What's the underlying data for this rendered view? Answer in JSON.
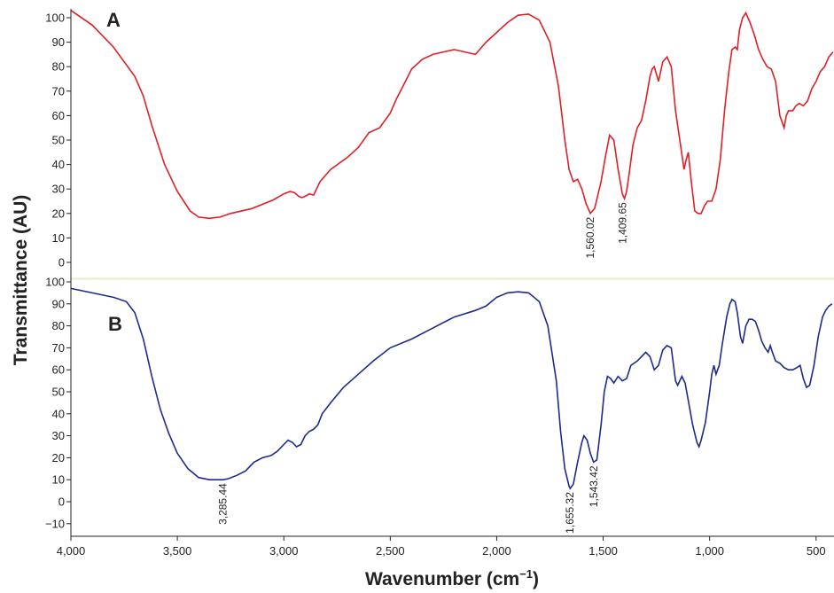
{
  "chart_data": {
    "type": "line",
    "ylabel": "Transmittance (AU)",
    "xlabel_main": "Wavenumber (cm",
    "xlabel_sup": "−1",
    "xlabel_close": ")",
    "xlim": [
      4000,
      420
    ],
    "x_ticks": [
      4000,
      3500,
      3000,
      2500,
      2000,
      1500,
      1000,
      500
    ],
    "x_tick_labels": [
      "4,000",
      "3,500",
      "3,000",
      "2,500",
      "2,000",
      "1,500",
      "1,000",
      "500"
    ],
    "divider_color": "#e6ecc8",
    "panels": [
      {
        "label": "A",
        "color": "#e01f26",
        "ylim": [
          -5,
          104
        ],
        "y_ticks": [
          0,
          10,
          20,
          30,
          40,
          50,
          60,
          70,
          80,
          90,
          100
        ],
        "y_tick_labels": [
          "0",
          "10",
          "20",
          "30",
          "40",
          "50",
          "60",
          "70",
          "80",
          "90",
          "100"
        ],
        "points": [
          [
            4000,
            103
          ],
          [
            3900,
            97
          ],
          [
            3800,
            88
          ],
          [
            3700,
            76
          ],
          [
            3660,
            68
          ],
          [
            3620,
            56
          ],
          [
            3560,
            40
          ],
          [
            3500,
            29
          ],
          [
            3440,
            21
          ],
          [
            3400,
            18.5
          ],
          [
            3350,
            18
          ],
          [
            3300,
            18.5
          ],
          [
            3250,
            20
          ],
          [
            3150,
            22
          ],
          [
            3050,
            25.5
          ],
          [
            3000,
            28
          ],
          [
            2970,
            29
          ],
          [
            2950,
            28.5
          ],
          [
            2930,
            27
          ],
          [
            2915,
            26.5
          ],
          [
            2900,
            27
          ],
          [
            2880,
            28
          ],
          [
            2860,
            27.5
          ],
          [
            2830,
            33
          ],
          [
            2780,
            38
          ],
          [
            2700,
            43
          ],
          [
            2650,
            47
          ],
          [
            2600,
            53
          ],
          [
            2550,
            55
          ],
          [
            2500,
            61
          ],
          [
            2470,
            67
          ],
          [
            2440,
            72
          ],
          [
            2400,
            79
          ],
          [
            2350,
            83
          ],
          [
            2300,
            85
          ],
          [
            2250,
            86
          ],
          [
            2200,
            87
          ],
          [
            2150,
            86
          ],
          [
            2100,
            85
          ],
          [
            2050,
            90
          ],
          [
            2000,
            94
          ],
          [
            1950,
            98
          ],
          [
            1900,
            101
          ],
          [
            1850,
            101.5
          ],
          [
            1800,
            99
          ],
          [
            1750,
            90
          ],
          [
            1710,
            72
          ],
          [
            1680,
            50
          ],
          [
            1660,
            38
          ],
          [
            1640,
            33
          ],
          [
            1620,
            34
          ],
          [
            1600,
            30
          ],
          [
            1580,
            24
          ],
          [
            1560,
            20
          ],
          [
            1540,
            22
          ],
          [
            1510,
            33
          ],
          [
            1490,
            43
          ],
          [
            1470,
            52
          ],
          [
            1450,
            50
          ],
          [
            1430,
            38
          ],
          [
            1410,
            28
          ],
          [
            1400,
            26
          ],
          [
            1390,
            29
          ],
          [
            1380,
            35
          ],
          [
            1360,
            48
          ],
          [
            1340,
            55
          ],
          [
            1320,
            58
          ],
          [
            1300,
            66
          ],
          [
            1280,
            76
          ],
          [
            1270,
            79
          ],
          [
            1260,
            80
          ],
          [
            1240,
            74
          ],
          [
            1220,
            82
          ],
          [
            1200,
            84
          ],
          [
            1180,
            80
          ],
          [
            1160,
            62
          ],
          [
            1140,
            50
          ],
          [
            1120,
            38
          ],
          [
            1110,
            42
          ],
          [
            1100,
            45
          ],
          [
            1085,
            32
          ],
          [
            1070,
            21
          ],
          [
            1055,
            20
          ],
          [
            1040,
            20
          ],
          [
            1025,
            23
          ],
          [
            1010,
            25
          ],
          [
            990,
            25
          ],
          [
            970,
            30
          ],
          [
            950,
            42
          ],
          [
            930,
            62
          ],
          [
            910,
            78
          ],
          [
            895,
            87
          ],
          [
            880,
            88
          ],
          [
            870,
            87
          ],
          [
            860,
            95
          ],
          [
            845,
            100
          ],
          [
            830,
            102
          ],
          [
            810,
            98
          ],
          [
            790,
            93
          ],
          [
            770,
            87
          ],
          [
            750,
            83
          ],
          [
            730,
            80
          ],
          [
            710,
            79
          ],
          [
            690,
            74
          ],
          [
            670,
            60
          ],
          [
            650,
            55
          ],
          [
            640,
            60
          ],
          [
            630,
            62
          ],
          [
            610,
            62
          ],
          [
            595,
            64
          ],
          [
            580,
            65
          ],
          [
            560,
            64
          ],
          [
            540,
            66
          ],
          [
            520,
            71
          ],
          [
            500,
            74
          ],
          [
            480,
            78
          ],
          [
            460,
            80
          ],
          [
            440,
            84
          ],
          [
            420,
            86
          ]
        ]
      },
      {
        "label": "B",
        "color": "#1d2b8c",
        "ylim": [
          -14,
          103
        ],
        "y_ticks": [
          -10,
          0,
          10,
          20,
          30,
          40,
          50,
          60,
          70,
          80,
          90,
          100
        ],
        "y_tick_labels": [
          "−10",
          "0",
          "10",
          "20",
          "30",
          "40",
          "50",
          "60",
          "70",
          "80",
          "90",
          "100"
        ],
        "points": [
          [
            4000,
            97
          ],
          [
            3900,
            95
          ],
          [
            3800,
            93
          ],
          [
            3740,
            91
          ],
          [
            3700,
            86
          ],
          [
            3660,
            74
          ],
          [
            3620,
            57
          ],
          [
            3580,
            42
          ],
          [
            3540,
            31
          ],
          [
            3500,
            22
          ],
          [
            3450,
            15
          ],
          [
            3400,
            11
          ],
          [
            3350,
            10
          ],
          [
            3300,
            10
          ],
          [
            3285,
            10
          ],
          [
            3260,
            10.5
          ],
          [
            3220,
            12
          ],
          [
            3180,
            14
          ],
          [
            3140,
            18
          ],
          [
            3100,
            20
          ],
          [
            3060,
            21
          ],
          [
            3030,
            23
          ],
          [
            3000,
            26
          ],
          [
            2980,
            28
          ],
          [
            2960,
            27
          ],
          [
            2940,
            25
          ],
          [
            2920,
            26
          ],
          [
            2900,
            30
          ],
          [
            2880,
            32
          ],
          [
            2860,
            33
          ],
          [
            2840,
            35
          ],
          [
            2820,
            40
          ],
          [
            2780,
            45
          ],
          [
            2720,
            52
          ],
          [
            2650,
            58
          ],
          [
            2580,
            64
          ],
          [
            2500,
            70
          ],
          [
            2400,
            74
          ],
          [
            2300,
            79
          ],
          [
            2200,
            84
          ],
          [
            2100,
            87
          ],
          [
            2050,
            89
          ],
          [
            2000,
            93
          ],
          [
            1950,
            95
          ],
          [
            1900,
            95.5
          ],
          [
            1850,
            95
          ],
          [
            1800,
            91
          ],
          [
            1760,
            80
          ],
          [
            1720,
            55
          ],
          [
            1700,
            32
          ],
          [
            1680,
            15
          ],
          [
            1660,
            7
          ],
          [
            1655,
            6
          ],
          [
            1640,
            8
          ],
          [
            1620,
            18
          ],
          [
            1600,
            27
          ],
          [
            1590,
            30
          ],
          [
            1575,
            28
          ],
          [
            1560,
            22
          ],
          [
            1545,
            18
          ],
          [
            1530,
            19
          ],
          [
            1510,
            35
          ],
          [
            1495,
            50
          ],
          [
            1480,
            57
          ],
          [
            1465,
            56
          ],
          [
            1450,
            54
          ],
          [
            1430,
            57
          ],
          [
            1410,
            55
          ],
          [
            1390,
            56
          ],
          [
            1370,
            62
          ],
          [
            1340,
            64
          ],
          [
            1320,
            66
          ],
          [
            1300,
            68
          ],
          [
            1280,
            66
          ],
          [
            1260,
            60
          ],
          [
            1240,
            62
          ],
          [
            1220,
            69
          ],
          [
            1200,
            71
          ],
          [
            1180,
            70
          ],
          [
            1160,
            55
          ],
          [
            1150,
            53
          ],
          [
            1130,
            57
          ],
          [
            1115,
            54
          ],
          [
            1100,
            46
          ],
          [
            1080,
            35
          ],
          [
            1060,
            27
          ],
          [
            1050,
            25
          ],
          [
            1040,
            28
          ],
          [
            1020,
            36
          ],
          [
            1000,
            50
          ],
          [
            990,
            58
          ],
          [
            980,
            62
          ],
          [
            970,
            58
          ],
          [
            955,
            62
          ],
          [
            940,
            72
          ],
          [
            920,
            84
          ],
          [
            905,
            90
          ],
          [
            895,
            92
          ],
          [
            880,
            91
          ],
          [
            870,
            86
          ],
          [
            855,
            75
          ],
          [
            845,
            72
          ],
          [
            830,
            80
          ],
          [
            815,
            83
          ],
          [
            800,
            83
          ],
          [
            785,
            82
          ],
          [
            770,
            78
          ],
          [
            755,
            73
          ],
          [
            740,
            70
          ],
          [
            725,
            68
          ],
          [
            715,
            71
          ],
          [
            705,
            68
          ],
          [
            690,
            64
          ],
          [
            670,
            63
          ],
          [
            650,
            61
          ],
          [
            630,
            60
          ],
          [
            610,
            60
          ],
          [
            590,
            61
          ],
          [
            575,
            62
          ],
          [
            560,
            56
          ],
          [
            545,
            52
          ],
          [
            530,
            53
          ],
          [
            510,
            62
          ],
          [
            490,
            75
          ],
          [
            470,
            84
          ],
          [
            455,
            87
          ],
          [
            440,
            89
          ],
          [
            425,
            90
          ]
        ]
      }
    ],
    "annotations": [
      {
        "panel": 0,
        "text": "1,560.02",
        "x": 1560,
        "y": 20
      },
      {
        "panel": 0,
        "text": "1,409.65",
        "x": 1409.65,
        "y": 26
      },
      {
        "panel": 1,
        "text": "3,285.44",
        "x": 3285.44,
        "y": 10
      },
      {
        "panel": 1,
        "text": "1,655.32",
        "x": 1655.32,
        "y": 6
      },
      {
        "panel": 1,
        "text": "1,543.42",
        "x": 1543.42,
        "y": 18
      }
    ]
  }
}
